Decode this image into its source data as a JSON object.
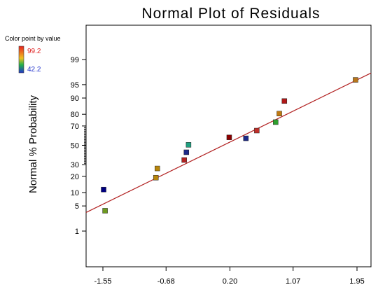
{
  "chart_data": {
    "type": "scatter",
    "title": "Normal Plot of Residuals",
    "xlabel": "",
    "ylabel": "Normal % Probability",
    "x_ticks": [
      "-1.55",
      "-0.68",
      "0.20",
      "1.07",
      "1.95"
    ],
    "y_ticks": [
      "1",
      "5",
      "10",
      "20",
      "30",
      "50",
      "70",
      "80",
      "90",
      "95",
      "99"
    ],
    "xlim": [
      -1.55,
      1.95
    ],
    "y_scale": "normal-probability",
    "legend": {
      "title": "Color point by value",
      "max_label": "99.2",
      "min_label": "42.2",
      "placement": "top-left"
    },
    "fit_line": {
      "x1": -1.55,
      "y1": 0.055,
      "x2": 1.95,
      "y2": 0.962,
      "color": "#b22222"
    },
    "points": [
      {
        "x": -1.52,
        "y": 3.8,
        "color": "#6e9a20"
      },
      {
        "x": -1.54,
        "y": 11.5,
        "color": "#000080"
      },
      {
        "x": -0.82,
        "y": 19,
        "color": "#b8860b"
      },
      {
        "x": -0.8,
        "y": 26.5,
        "color": "#b8860b"
      },
      {
        "x": -0.43,
        "y": 34.5,
        "color": "#b22222"
      },
      {
        "x": -0.4,
        "y": 42.5,
        "color": "#1c2a8a"
      },
      {
        "x": -0.37,
        "y": 50.5,
        "color": "#20a080"
      },
      {
        "x": 0.19,
        "y": 58.5,
        "color": "#8b0000"
      },
      {
        "x": 0.42,
        "y": 57.5,
        "color": "#1c2a8a"
      },
      {
        "x": 0.57,
        "y": 65.5,
        "color": "#c0302a"
      },
      {
        "x": 0.83,
        "y": 73.5,
        "color": "#2ea02e"
      },
      {
        "x": 0.88,
        "y": 80.5,
        "color": "#c07a10"
      },
      {
        "x": 0.95,
        "y": 88.5,
        "color": "#b01818"
      },
      {
        "x": 1.93,
        "y": 96.2,
        "color": "#b8761a"
      }
    ],
    "grid": false
  }
}
